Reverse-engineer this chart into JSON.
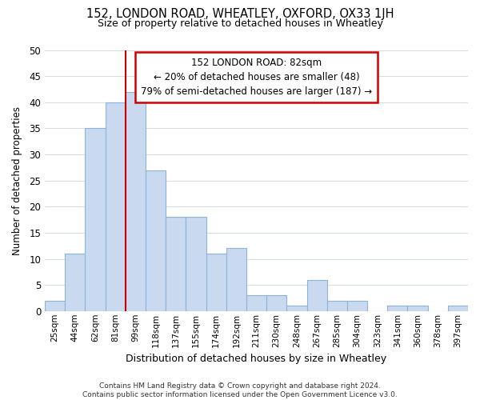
{
  "title": "152, LONDON ROAD, WHEATLEY, OXFORD, OX33 1JH",
  "subtitle": "Size of property relative to detached houses in Wheatley",
  "xlabel": "Distribution of detached houses by size in Wheatley",
  "ylabel": "Number of detached properties",
  "bin_labels": [
    "25sqm",
    "44sqm",
    "62sqm",
    "81sqm",
    "99sqm",
    "118sqm",
    "137sqm",
    "155sqm",
    "174sqm",
    "192sqm",
    "211sqm",
    "230sqm",
    "248sqm",
    "267sqm",
    "285sqm",
    "304sqm",
    "323sqm",
    "341sqm",
    "360sqm",
    "378sqm",
    "397sqm"
  ],
  "bar_heights": [
    2,
    11,
    35,
    40,
    42,
    27,
    18,
    18,
    11,
    12,
    3,
    3,
    1,
    6,
    2,
    2,
    0,
    1,
    1,
    0,
    1
  ],
  "bar_color": "#c9d9f0",
  "bar_edge_color": "#8ab4d8",
  "vline_x_index": 3,
  "vline_color": "#cc0000",
  "annotation_title": "152 LONDON ROAD: 82sqm",
  "annotation_line1": "← 20% of detached houses are smaller (48)",
  "annotation_line2": "79% of semi-detached houses are larger (187) →",
  "annotation_box_edge": "#cc0000",
  "ylim": [
    0,
    50
  ],
  "yticks": [
    0,
    5,
    10,
    15,
    20,
    25,
    30,
    35,
    40,
    45,
    50
  ],
  "footnote1": "Contains HM Land Registry data © Crown copyright and database right 2024.",
  "footnote2": "Contains public sector information licensed under the Open Government Licence v3.0."
}
